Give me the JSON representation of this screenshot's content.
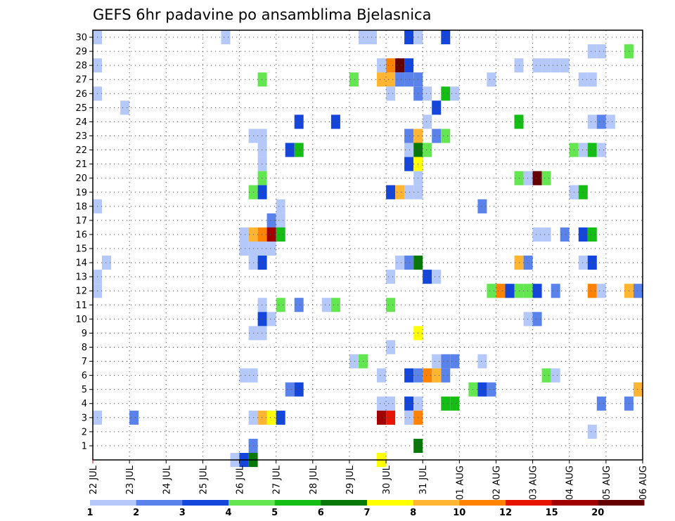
{
  "chart_data": {
    "type": "heatmap",
    "title": "GEFS 6hr padavine po ansamblima Bjelasnica",
    "x_tick_labels": [
      "22 JUL",
      "23 JUL",
      "24 JUL",
      "25 JUL",
      "26 JUL",
      "27 JUL",
      "28 JUL",
      "29 JUL",
      "30 JUL",
      "31 JUL",
      "01 AUG",
      "02 AUG",
      "03 AUG",
      "04 AUG",
      "05 AUG",
      "06 AUG"
    ],
    "y_tick_labels": [
      "1",
      "2",
      "3",
      "4",
      "5",
      "6",
      "7",
      "8",
      "9",
      "10",
      "11",
      "12",
      "13",
      "14",
      "15",
      "16",
      "17",
      "18",
      "19",
      "20",
      "21",
      "22",
      "23",
      "24",
      "25",
      "26",
      "27",
      "28",
      "29",
      "30"
    ],
    "ylim": [
      0,
      30
    ],
    "time_step_hours": 6,
    "grid": true,
    "colorbar": {
      "placement": "bottom",
      "labels": [
        "1",
        "2",
        "3",
        "4",
        "5",
        "6",
        "7",
        "8",
        "10",
        "12",
        "15",
        "20"
      ],
      "colors": [
        "#b4c8fa",
        "#5a82eb",
        "#1446dc",
        "#64e650",
        "#14be14",
        "#087808",
        "#ffff00",
        "#ffb432",
        "#ff8200",
        "#e61400",
        "#a00000",
        "#640000"
      ]
    },
    "cells_note": "each cell: [day_offset_from_22_JUL_00z, member, color_index]",
    "cells": [
      [
        0.125,
        30,
        0
      ],
      [
        3.625,
        30,
        0
      ],
      [
        7.375,
        30,
        0
      ],
      [
        7.625,
        30,
        0
      ],
      [
        8.625,
        30,
        2
      ],
      [
        8.875,
        30,
        0
      ],
      [
        9.625,
        30,
        2
      ],
      [
        13.625,
        29,
        0
      ],
      [
        13.875,
        29,
        0
      ],
      [
        14.625,
        29,
        3
      ],
      [
        0.125,
        28,
        0
      ],
      [
        7.875,
        28,
        0
      ],
      [
        8.125,
        28,
        8
      ],
      [
        8.375,
        28,
        11
      ],
      [
        8.625,
        28,
        2
      ],
      [
        11.625,
        28,
        0
      ],
      [
        12.125,
        28,
        0
      ],
      [
        12.375,
        28,
        0
      ],
      [
        12.625,
        28,
        0
      ],
      [
        12.875,
        28,
        0
      ],
      [
        4.625,
        27,
        3
      ],
      [
        7.125,
        27,
        3
      ],
      [
        7.875,
        27,
        7
      ],
      [
        8.125,
        27,
        7
      ],
      [
        8.375,
        27,
        1
      ],
      [
        8.625,
        27,
        1
      ],
      [
        8.875,
        27,
        1
      ],
      [
        10.875,
        27,
        0
      ],
      [
        13.375,
        27,
        0
      ],
      [
        13.625,
        27,
        0
      ],
      [
        0.125,
        26,
        0
      ],
      [
        8.125,
        26,
        0
      ],
      [
        8.875,
        26,
        1
      ],
      [
        9.125,
        26,
        0
      ],
      [
        9.625,
        26,
        4
      ],
      [
        9.875,
        26,
        0
      ],
      [
        9.375,
        25,
        2
      ],
      [
        0.875,
        25,
        0
      ],
      [
        5.625,
        24,
        2
      ],
      [
        6.625,
        24,
        2
      ],
      [
        9.125,
        24,
        0
      ],
      [
        11.625,
        24,
        4
      ],
      [
        13.625,
        24,
        0
      ],
      [
        13.875,
        24,
        1
      ],
      [
        14.125,
        24,
        0
      ],
      [
        4.375,
        23,
        0
      ],
      [
        4.625,
        23,
        0
      ],
      [
        8.625,
        23,
        1
      ],
      [
        8.875,
        23,
        7
      ],
      [
        9.375,
        23,
        1
      ],
      [
        9.625,
        23,
        3
      ],
      [
        4.625,
        22,
        0
      ],
      [
        5.375,
        22,
        2
      ],
      [
        5.625,
        22,
        4
      ],
      [
        8.625,
        22,
        0
      ],
      [
        8.875,
        22,
        5
      ],
      [
        9.125,
        22,
        3
      ],
      [
        13.125,
        22,
        3
      ],
      [
        13.375,
        22,
        0
      ],
      [
        13.625,
        22,
        4
      ],
      [
        13.875,
        22,
        0
      ],
      [
        4.625,
        21,
        0
      ],
      [
        8.625,
        21,
        2
      ],
      [
        8.875,
        21,
        6
      ],
      [
        4.625,
        20,
        3
      ],
      [
        8.875,
        20,
        0
      ],
      [
        11.625,
        20,
        3
      ],
      [
        11.875,
        20,
        0
      ],
      [
        12.125,
        20,
        11
      ],
      [
        12.375,
        20,
        3
      ],
      [
        4.375,
        19,
        3
      ],
      [
        4.625,
        19,
        2
      ],
      [
        8.875,
        19,
        0
      ],
      [
        8.125,
        19,
        2
      ],
      [
        8.375,
        19,
        7
      ],
      [
        8.625,
        19,
        0
      ],
      [
        13.125,
        19,
        0
      ],
      [
        13.375,
        19,
        4
      ],
      [
        0.125,
        18,
        0
      ],
      [
        5.125,
        18,
        0
      ],
      [
        10.625,
        18,
        1
      ],
      [
        4.875,
        17,
        1
      ],
      [
        5.125,
        17,
        0
      ],
      [
        4.125,
        16,
        0
      ],
      [
        4.375,
        16,
        7
      ],
      [
        4.625,
        16,
        8
      ],
      [
        4.875,
        16,
        10
      ],
      [
        5.125,
        16,
        4
      ],
      [
        12.125,
        16,
        0
      ],
      [
        12.375,
        16,
        0
      ],
      [
        12.875,
        16,
        1
      ],
      [
        13.375,
        16,
        2
      ],
      [
        13.625,
        16,
        4
      ],
      [
        4.125,
        15,
        0
      ],
      [
        4.375,
        15,
        0
      ],
      [
        4.625,
        15,
        0
      ],
      [
        4.875,
        15,
        0
      ],
      [
        0.375,
        14,
        0
      ],
      [
        4.375,
        14,
        0
      ],
      [
        4.625,
        14,
        2
      ],
      [
        8.375,
        14,
        0
      ],
      [
        8.625,
        14,
        1
      ],
      [
        8.875,
        14,
        5
      ],
      [
        11.625,
        14,
        7
      ],
      [
        11.875,
        14,
        1
      ],
      [
        13.375,
        14,
        0
      ],
      [
        13.625,
        14,
        2
      ],
      [
        0.125,
        13,
        0
      ],
      [
        8.125,
        13,
        0
      ],
      [
        9.125,
        13,
        2
      ],
      [
        9.375,
        13,
        0
      ],
      [
        0.125,
        12,
        0
      ],
      [
        10.875,
        12,
        3
      ],
      [
        11.125,
        12,
        8
      ],
      [
        11.375,
        12,
        2
      ],
      [
        11.625,
        12,
        3
      ],
      [
        11.875,
        12,
        3
      ],
      [
        12.125,
        12,
        2
      ],
      [
        12.625,
        12,
        1
      ],
      [
        13.625,
        12,
        8
      ],
      [
        13.875,
        12,
        0
      ],
      [
        14.625,
        12,
        7
      ],
      [
        14.875,
        12,
        1
      ],
      [
        4.625,
        11,
        0
      ],
      [
        5.125,
        11,
        3
      ],
      [
        5.625,
        11,
        1
      ],
      [
        6.375,
        11,
        0
      ],
      [
        6.625,
        11,
        3
      ],
      [
        8.125,
        11,
        3
      ],
      [
        4.625,
        10,
        2
      ],
      [
        4.875,
        10,
        0
      ],
      [
        11.875,
        10,
        0
      ],
      [
        12.125,
        10,
        1
      ],
      [
        4.375,
        9,
        0
      ],
      [
        4.625,
        9,
        0
      ],
      [
        8.875,
        9,
        6
      ],
      [
        8.125,
        8,
        0
      ],
      [
        7.125,
        7,
        0
      ],
      [
        7.375,
        7,
        3
      ],
      [
        9.375,
        7,
        0
      ],
      [
        9.625,
        7,
        1
      ],
      [
        9.875,
        7,
        1
      ],
      [
        10.625,
        7,
        0
      ],
      [
        4.125,
        6,
        0
      ],
      [
        4.375,
        6,
        0
      ],
      [
        7.875,
        6,
        0
      ],
      [
        8.625,
        6,
        2
      ],
      [
        8.875,
        6,
        1
      ],
      [
        9.125,
        6,
        8
      ],
      [
        9.375,
        6,
        7
      ],
      [
        9.625,
        6,
        1
      ],
      [
        12.375,
        6,
        3
      ],
      [
        12.625,
        6,
        0
      ],
      [
        5.375,
        5,
        1
      ],
      [
        5.625,
        5,
        2
      ],
      [
        10.375,
        5,
        3
      ],
      [
        10.625,
        5,
        2
      ],
      [
        10.875,
        5,
        1
      ],
      [
        14.875,
        5,
        7
      ],
      [
        7.875,
        4,
        0
      ],
      [
        8.125,
        4,
        0
      ],
      [
        8.625,
        4,
        2
      ],
      [
        8.875,
        4,
        0
      ],
      [
        9.625,
        4,
        4
      ],
      [
        9.875,
        4,
        4
      ],
      [
        13.875,
        4,
        1
      ],
      [
        14.625,
        4,
        1
      ],
      [
        0.125,
        3,
        0
      ],
      [
        1.125,
        3,
        1
      ],
      [
        4.375,
        3,
        0
      ],
      [
        4.625,
        3,
        7
      ],
      [
        4.875,
        3,
        6
      ],
      [
        5.125,
        3,
        2
      ],
      [
        7.875,
        3,
        10
      ],
      [
        8.125,
        3,
        9
      ],
      [
        8.625,
        3,
        0
      ],
      [
        8.875,
        3,
        8
      ],
      [
        13.625,
        2,
        0
      ],
      [
        4.375,
        1,
        1
      ],
      [
        8.875,
        1,
        5
      ],
      [
        3.875,
        0,
        0
      ],
      [
        4.125,
        0,
        2
      ],
      [
        4.375,
        0,
        5
      ],
      [
        7.875,
        0,
        6
      ]
    ]
  }
}
